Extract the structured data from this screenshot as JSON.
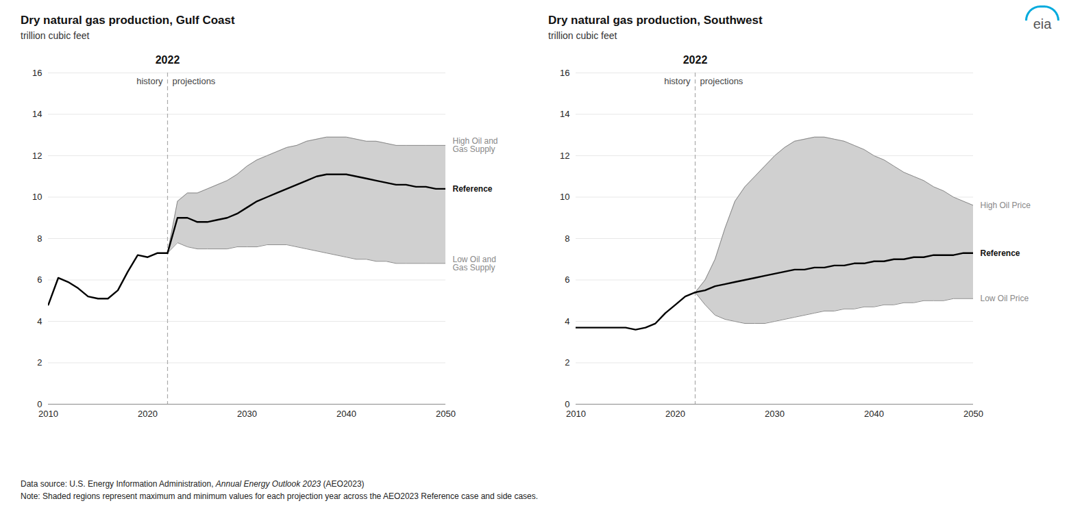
{
  "chart_data": [
    {
      "type": "line",
      "title": "Dry natural gas production, Gulf Coast",
      "subtitle": "trillion cubic feet",
      "xlim": [
        2010,
        2050
      ],
      "ylim": [
        0,
        16
      ],
      "xticks": [
        2010,
        2020,
        2030,
        2040,
        2050
      ],
      "yticks": [
        0,
        2,
        4,
        6,
        8,
        10,
        12,
        14,
        16
      ],
      "grid": true,
      "series": [
        {
          "color": "#000000",
          "line_style": "solid",
          "x": [
            2010,
            2011,
            2012,
            2013,
            2014,
            2015,
            2016,
            2017,
            2018,
            2019,
            2020,
            2021,
            2022
          ],
          "values": [
            4.8,
            6.1,
            5.9,
            5.6,
            5.2,
            5.1,
            5.1,
            5.5,
            6.4,
            7.2,
            7.1,
            7.3,
            7.3
          ]
        },
        {
          "name": "Reference",
          "color": "#000000",
          "line_style": "solid",
          "x": [
            2022,
            2023,
            2024,
            2025,
            2026,
            2027,
            2028,
            2029,
            2030,
            2031,
            2032,
            2033,
            2034,
            2035,
            2036,
            2037,
            2038,
            2039,
            2040,
            2041,
            2042,
            2043,
            2044,
            2045,
            2046,
            2047,
            2048,
            2049,
            2050
          ],
          "values": [
            7.3,
            9.0,
            9.0,
            8.8,
            8.8,
            8.9,
            9.0,
            9.2,
            9.5,
            9.8,
            10.0,
            10.2,
            10.4,
            10.6,
            10.8,
            11.0,
            11.1,
            11.1,
            11.1,
            11.0,
            10.9,
            10.8,
            10.7,
            10.6,
            10.6,
            10.5,
            10.5,
            10.4,
            10.4
          ]
        },
        {
          "name": "High Oil and\nGas Supply",
          "color": "#888888",
          "line_style": "solid",
          "x": [
            2022,
            2023,
            2024,
            2025,
            2026,
            2027,
            2028,
            2029,
            2030,
            2031,
            2032,
            2033,
            2034,
            2035,
            2036,
            2037,
            2038,
            2039,
            2040,
            2041,
            2042,
            2043,
            2044,
            2045,
            2046,
            2047,
            2048,
            2049,
            2050
          ],
          "values": [
            7.3,
            9.8,
            10.2,
            10.2,
            10.4,
            10.6,
            10.8,
            11.1,
            11.5,
            11.8,
            12.0,
            12.2,
            12.4,
            12.5,
            12.7,
            12.8,
            12.9,
            12.9,
            12.9,
            12.8,
            12.7,
            12.7,
            12.6,
            12.5,
            12.5,
            12.5,
            12.5,
            12.5,
            12.5
          ]
        },
        {
          "name": "Low Oil and\nGas Supply",
          "color": "#888888",
          "line_style": "solid",
          "x": [
            2022,
            2023,
            2024,
            2025,
            2026,
            2027,
            2028,
            2029,
            2030,
            2031,
            2032,
            2033,
            2034,
            2035,
            2036,
            2037,
            2038,
            2039,
            2040,
            2041,
            2042,
            2043,
            2044,
            2045,
            2046,
            2047,
            2048,
            2049,
            2050
          ],
          "values": [
            7.3,
            7.8,
            7.6,
            7.5,
            7.5,
            7.5,
            7.5,
            7.6,
            7.6,
            7.6,
            7.7,
            7.7,
            7.7,
            7.6,
            7.5,
            7.4,
            7.3,
            7.2,
            7.1,
            7.0,
            7.0,
            6.9,
            6.9,
            6.8,
            6.8,
            6.8,
            6.8,
            6.8,
            6.8
          ]
        }
      ],
      "band": {
        "color": "#d0d0d0",
        "between": [
          "High Oil and\nGas Supply",
          "Low Oil and\nGas Supply"
        ]
      },
      "divider": {
        "x": 2022,
        "label": "2022",
        "color": "#aaaaaa",
        "line_style": "dashed",
        "left_label": "history",
        "right_label": "projections"
      }
    },
    {
      "type": "line",
      "title": "Dry natural gas production, Southwest",
      "subtitle": "trillion cubic feet",
      "xlim": [
        2010,
        2050
      ],
      "ylim": [
        0,
        16
      ],
      "xticks": [
        2010,
        2020,
        2030,
        2040,
        2050
      ],
      "yticks": [
        0,
        2,
        4,
        6,
        8,
        10,
        12,
        14,
        16
      ],
      "grid": true,
      "series": [
        {
          "color": "#000000",
          "line_style": "solid",
          "x": [
            2010,
            2011,
            2012,
            2013,
            2014,
            2015,
            2016,
            2017,
            2018,
            2019,
            2020,
            2021,
            2022
          ],
          "values": [
            3.7,
            3.7,
            3.7,
            3.7,
            3.7,
            3.7,
            3.6,
            3.7,
            3.9,
            4.4,
            4.8,
            5.2,
            5.4
          ]
        },
        {
          "name": "Reference",
          "color": "#000000",
          "line_style": "solid",
          "x": [
            2022,
            2023,
            2024,
            2025,
            2026,
            2027,
            2028,
            2029,
            2030,
            2031,
            2032,
            2033,
            2034,
            2035,
            2036,
            2037,
            2038,
            2039,
            2040,
            2041,
            2042,
            2043,
            2044,
            2045,
            2046,
            2047,
            2048,
            2049,
            2050
          ],
          "values": [
            5.4,
            5.5,
            5.7,
            5.8,
            5.9,
            6.0,
            6.1,
            6.2,
            6.3,
            6.4,
            6.5,
            6.5,
            6.6,
            6.6,
            6.7,
            6.7,
            6.8,
            6.8,
            6.9,
            6.9,
            7.0,
            7.0,
            7.1,
            7.1,
            7.2,
            7.2,
            7.2,
            7.3,
            7.3
          ]
        },
        {
          "name": "High Oil Price",
          "color": "#888888",
          "line_style": "solid",
          "x": [
            2022,
            2023,
            2024,
            2025,
            2026,
            2027,
            2028,
            2029,
            2030,
            2031,
            2032,
            2033,
            2034,
            2035,
            2036,
            2037,
            2038,
            2039,
            2040,
            2041,
            2042,
            2043,
            2044,
            2045,
            2046,
            2047,
            2048,
            2049,
            2050
          ],
          "values": [
            5.4,
            6.0,
            7.0,
            8.5,
            9.8,
            10.5,
            11.0,
            11.5,
            12.0,
            12.4,
            12.7,
            12.8,
            12.9,
            12.9,
            12.8,
            12.7,
            12.5,
            12.3,
            12.0,
            11.8,
            11.5,
            11.2,
            11.0,
            10.8,
            10.5,
            10.3,
            10.0,
            9.8,
            9.6
          ]
        },
        {
          "name": "Low Oil Price",
          "color": "#888888",
          "line_style": "solid",
          "x": [
            2022,
            2023,
            2024,
            2025,
            2026,
            2027,
            2028,
            2029,
            2030,
            2031,
            2032,
            2033,
            2034,
            2035,
            2036,
            2037,
            2038,
            2039,
            2040,
            2041,
            2042,
            2043,
            2044,
            2045,
            2046,
            2047,
            2048,
            2049,
            2050
          ],
          "values": [
            5.4,
            4.8,
            4.3,
            4.1,
            4.0,
            3.9,
            3.9,
            3.9,
            4.0,
            4.1,
            4.2,
            4.3,
            4.4,
            4.5,
            4.5,
            4.6,
            4.6,
            4.7,
            4.7,
            4.8,
            4.8,
            4.9,
            4.9,
            5.0,
            5.0,
            5.0,
            5.1,
            5.1,
            5.1
          ]
        }
      ],
      "band": {
        "color": "#d0d0d0",
        "between": [
          "High Oil Price",
          "Low Oil Price"
        ]
      },
      "divider": {
        "x": 2022,
        "label": "2022",
        "color": "#aaaaaa",
        "line_style": "dashed",
        "left_label": "history",
        "right_label": "projections"
      }
    }
  ],
  "source": [
    "Data source: U.S. Energy Information Administration, ",
    "Annual Energy Outlook 2023",
    " (AEO2023)"
  ],
  "note": "Note: Shaded regions represent maximum and minimum values for each projection year across the AEO2023 Reference case and side cases.",
  "logo": "eia"
}
